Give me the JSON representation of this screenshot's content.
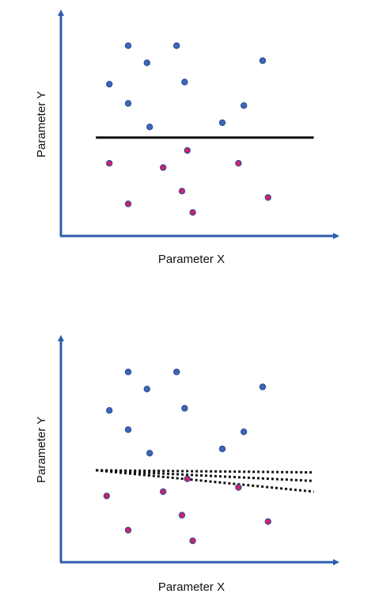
{
  "colors": {
    "axis": "#2f5cae",
    "separator": "#111111",
    "point_blue_fill": "#3f66b8",
    "point_blue_stroke": "#2c4f98",
    "point_red_fill": "#d0206f",
    "point_red_stroke": "#3a4f8f"
  },
  "chart_data": [
    {
      "type": "scatter",
      "xlabel": "Parameter X",
      "ylabel": "Parameter Y",
      "grid": false,
      "xlim": [
        0,
        10
      ],
      "ylim": [
        0,
        10
      ],
      "series": [
        {
          "class": "blue",
          "points": [
            [
              2.5,
              8.9
            ],
            [
              3.2,
              8.1
            ],
            [
              4.3,
              8.9
            ],
            [
              7.5,
              8.2
            ],
            [
              1.8,
              7.1
            ],
            [
              4.6,
              7.2
            ],
            [
              2.5,
              6.2
            ],
            [
              6.8,
              6.1
            ],
            [
              3.3,
              5.1
            ],
            [
              6.0,
              5.3
            ]
          ]
        },
        {
          "class": "red",
          "points": [
            [
              4.7,
              4.0
            ],
            [
              1.8,
              3.4
            ],
            [
              3.8,
              3.2
            ],
            [
              6.6,
              3.4
            ],
            [
              4.5,
              2.1
            ],
            [
              7.7,
              1.8
            ],
            [
              2.5,
              1.5
            ],
            [
              4.9,
              1.1
            ]
          ]
        }
      ],
      "boundaries": [
        {
          "style": "solid",
          "from": [
            1.3,
            4.6
          ],
          "to": [
            9.4,
            4.6
          ]
        }
      ]
    },
    {
      "type": "scatter",
      "xlabel": "Parameter X",
      "ylabel": "Parameter Y",
      "grid": false,
      "xlim": [
        0,
        10
      ],
      "ylim": [
        0,
        10
      ],
      "series": [
        {
          "class": "blue",
          "points": [
            [
              2.5,
              8.9
            ],
            [
              3.2,
              8.1
            ],
            [
              4.3,
              8.9
            ],
            [
              7.5,
              8.2
            ],
            [
              1.8,
              7.1
            ],
            [
              4.6,
              7.2
            ],
            [
              2.5,
              6.2
            ],
            [
              6.8,
              6.1
            ],
            [
              3.3,
              5.1
            ],
            [
              6.0,
              5.3
            ]
          ]
        },
        {
          "class": "red",
          "points": [
            [
              4.7,
              3.9
            ],
            [
              1.7,
              3.1
            ],
            [
              3.8,
              3.3
            ],
            [
              6.6,
              3.5
            ],
            [
              4.5,
              2.2
            ],
            [
              7.7,
              1.9
            ],
            [
              2.5,
              1.5
            ],
            [
              4.9,
              1.0
            ]
          ]
        }
      ],
      "boundaries": [
        {
          "style": "dotted",
          "from": [
            1.3,
            4.3
          ],
          "to": [
            9.4,
            4.2
          ]
        },
        {
          "style": "dotted",
          "from": [
            1.3,
            4.3
          ],
          "to": [
            9.4,
            3.8
          ]
        },
        {
          "style": "dotted",
          "from": [
            1.3,
            4.3
          ],
          "to": [
            9.4,
            3.3
          ]
        }
      ]
    }
  ]
}
